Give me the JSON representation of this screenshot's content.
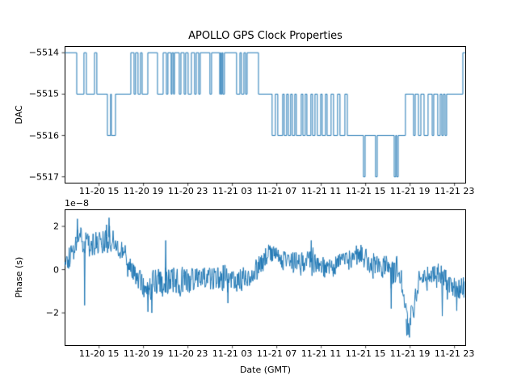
{
  "figure": {
    "title": "APOLLO GPS Clock Properties",
    "background": "#ffffff",
    "line_color": "#1f77b4",
    "axis_color": "#000000"
  },
  "chart_data": [
    {
      "type": "line",
      "name": "dac-vs-time",
      "style": "step",
      "ylabel": "DAC",
      "x_unit": "hours since 11-20 00:00 (GMT)",
      "xlim": [
        11.9,
        47.97
      ],
      "ylim": [
        -5517.15,
        -5513.85
      ],
      "grid": false,
      "xtick_values": [
        15,
        19,
        23,
        27,
        31,
        35,
        39,
        43,
        47
      ],
      "xtick_labels": [
        "11-20 15",
        "11-20 19",
        "11-20 23",
        "11-21 03",
        "11-21 07",
        "11-21 11",
        "11-21 15",
        "11-21 19",
        "11-21 23"
      ],
      "ytick_values": [
        -5514,
        -5515,
        -5516,
        -5517
      ],
      "ytick_labels": [
        "−5514",
        "−5515",
        "−5516",
        "−5517"
      ],
      "step_points": [
        [
          11.9,
          -5514
        ],
        [
          12.99,
          -5515
        ],
        [
          13.64,
          -5514
        ],
        [
          13.86,
          -5515
        ],
        [
          14.59,
          -5514
        ],
        [
          14.8,
          -5515
        ],
        [
          15.75,
          -5516
        ],
        [
          16.04,
          -5515
        ],
        [
          16.11,
          -5516
        ],
        [
          16.48,
          -5515
        ],
        [
          17.86,
          -5514
        ],
        [
          18.15,
          -5515
        ],
        [
          18.29,
          -5514
        ],
        [
          18.51,
          -5515
        ],
        [
          18.73,
          -5514
        ],
        [
          18.88,
          -5515
        ],
        [
          19.39,
          -5514
        ],
        [
          20.26,
          -5515
        ],
        [
          20.77,
          -5514
        ],
        [
          21.06,
          -5515
        ],
        [
          21.2,
          -5514
        ],
        [
          21.49,
          -5515
        ],
        [
          21.57,
          -5514
        ],
        [
          21.71,
          -5515
        ],
        [
          21.79,
          -5514
        ],
        [
          22.22,
          -5515
        ],
        [
          22.37,
          -5514
        ],
        [
          22.66,
          -5515
        ],
        [
          22.8,
          -5514
        ],
        [
          23.02,
          -5515
        ],
        [
          23.31,
          -5514
        ],
        [
          23.6,
          -5515
        ],
        [
          23.75,
          -5514
        ],
        [
          23.97,
          -5515
        ],
        [
          24.11,
          -5514
        ],
        [
          24.98,
          -5515
        ],
        [
          25.13,
          -5514
        ],
        [
          25.86,
          -5515
        ],
        [
          25.93,
          -5514
        ],
        [
          26.0,
          -5515
        ],
        [
          26.08,
          -5514
        ],
        [
          26.15,
          -5515
        ],
        [
          26.29,
          -5514
        ],
        [
          27.38,
          -5515
        ],
        [
          27.68,
          -5514
        ],
        [
          27.82,
          -5515
        ],
        [
          28.04,
          -5514
        ],
        [
          28.19,
          -5515
        ],
        [
          28.33,
          -5514
        ],
        [
          29.35,
          -5515
        ],
        [
          30.58,
          -5516
        ],
        [
          30.87,
          -5515
        ],
        [
          31.09,
          -5516
        ],
        [
          31.53,
          -5515
        ],
        [
          31.67,
          -5516
        ],
        [
          31.89,
          -5515
        ],
        [
          32.04,
          -5516
        ],
        [
          32.25,
          -5515
        ],
        [
          32.4,
          -5516
        ],
        [
          32.62,
          -5515
        ],
        [
          32.76,
          -5516
        ],
        [
          33.2,
          -5515
        ],
        [
          33.35,
          -5516
        ],
        [
          33.56,
          -5515
        ],
        [
          33.71,
          -5516
        ],
        [
          34.07,
          -5515
        ],
        [
          34.22,
          -5516
        ],
        [
          34.44,
          -5515
        ],
        [
          34.65,
          -5516
        ],
        [
          34.95,
          -5515
        ],
        [
          35.09,
          -5516
        ],
        [
          35.38,
          -5515
        ],
        [
          35.53,
          -5516
        ],
        [
          35.89,
          -5515
        ],
        [
          36.11,
          -5516
        ],
        [
          36.47,
          -5515
        ],
        [
          36.69,
          -5516
        ],
        [
          37.13,
          -5515
        ],
        [
          37.35,
          -5516
        ],
        [
          38.8,
          -5517
        ],
        [
          38.95,
          -5516
        ],
        [
          39.89,
          -5517
        ],
        [
          40.04,
          -5516
        ],
        [
          41.57,
          -5517
        ],
        [
          41.71,
          -5516
        ],
        [
          41.79,
          -5517
        ],
        [
          41.93,
          -5516
        ],
        [
          42.58,
          -5515
        ],
        [
          43.31,
          -5516
        ],
        [
          43.46,
          -5515
        ],
        [
          43.75,
          -5516
        ],
        [
          43.97,
          -5515
        ],
        [
          44.26,
          -5516
        ],
        [
          44.62,
          -5515
        ],
        [
          44.99,
          -5516
        ],
        [
          45.13,
          -5515
        ],
        [
          45.49,
          -5516
        ],
        [
          45.71,
          -5515
        ],
        [
          45.86,
          -5516
        ],
        [
          46.0,
          -5515
        ],
        [
          46.15,
          -5516
        ],
        [
          46.29,
          -5515
        ],
        [
          47.75,
          -5514
        ],
        [
          47.97,
          -5514
        ]
      ]
    },
    {
      "type": "line",
      "name": "phase-vs-time",
      "style": "noisy",
      "ylabel": "Phase (s)",
      "xlabel": "Date (GMT)",
      "offset_text": "1e−8",
      "y_unit": "1e-8 s",
      "x_unit": "hours since 11-20 00:00 (GMT)",
      "xlim": [
        11.9,
        47.97
      ],
      "ylim": [
        -3.5,
        2.78
      ],
      "grid": false,
      "xtick_values": [
        15,
        19,
        23,
        27,
        31,
        35,
        39,
        43,
        47
      ],
      "xtick_labels": [
        "11-20 15",
        "11-20 19",
        "11-20 23",
        "11-21 03",
        "11-21 07",
        "11-21 11",
        "11-21 15",
        "11-21 19",
        "11-21 23"
      ],
      "ytick_values": [
        2,
        0,
        -2
      ],
      "ytick_labels": [
        "2",
        "0",
        "−2"
      ],
      "series": {
        "t_start": 11.9,
        "t_step": 0.3636,
        "mid": [
          0.3,
          0.5,
          0.8,
          1.4,
          1.6,
          1.3,
          1.2,
          1.1,
          1.2,
          1.3,
          1.35,
          1.5,
          1.3,
          1.1,
          0.9,
          0.7,
          0.35,
          -0.1,
          -0.45,
          -0.6,
          -0.7,
          -0.75,
          -0.6,
          -0.55,
          -0.5,
          -0.5,
          -0.55,
          -0.5,
          -0.5,
          -0.45,
          -0.45,
          -0.5,
          -0.45,
          -0.4,
          -0.45,
          -0.4,
          -0.35,
          -0.4,
          -0.35,
          -0.4,
          -0.45,
          -0.4,
          -0.4,
          -0.35,
          -0.4,
          -0.35,
          -0.25,
          -0.1,
          0.1,
          0.3,
          0.55,
          0.75,
          0.6,
          0.5,
          0.45,
          0.4,
          0.35,
          0.3,
          0.25,
          0.3,
          0.3,
          0.35,
          0.25,
          0.15,
          0.1,
          0.05,
          0.0,
          0.1,
          0.25,
          0.3,
          0.4,
          0.5,
          0.65,
          0.75,
          0.6,
          0.45,
          0.3,
          0.2,
          0.15,
          0.1,
          0.15,
          0.1,
          0.0,
          -0.4,
          -1.5,
          -2.6,
          -2.0,
          -1.0,
          -0.6,
          -0.5,
          -0.4,
          -0.3,
          -0.3,
          -0.45,
          -0.5,
          -0.55,
          -0.6,
          -0.75,
          -0.85,
          -0.55
        ],
        "amp": [
          0.45,
          0.5,
          0.55,
          0.7,
          0.7,
          0.8,
          0.6,
          0.6,
          0.55,
          0.6,
          0.6,
          0.8,
          0.6,
          0.5,
          0.5,
          0.45,
          0.5,
          0.5,
          0.5,
          0.55,
          0.8,
          0.9,
          0.7,
          0.6,
          0.7,
          0.8,
          0.6,
          0.6,
          0.65,
          0.6,
          0.55,
          0.6,
          0.55,
          0.5,
          0.55,
          0.5,
          0.55,
          0.6,
          0.55,
          0.6,
          0.7,
          0.55,
          0.5,
          0.55,
          0.6,
          0.5,
          0.5,
          0.5,
          0.5,
          0.5,
          0.5,
          0.5,
          0.5,
          0.5,
          0.5,
          0.5,
          0.5,
          0.55,
          0.6,
          0.5,
          0.55,
          0.7,
          0.5,
          0.5,
          0.5,
          0.5,
          0.5,
          0.5,
          0.5,
          0.5,
          0.5,
          0.5,
          0.5,
          0.5,
          0.5,
          0.5,
          0.55,
          0.5,
          0.5,
          0.55,
          0.6,
          0.7,
          0.6,
          0.6,
          0.7,
          0.45,
          0.5,
          0.6,
          0.6,
          0.55,
          0.55,
          0.5,
          0.6,
          0.8,
          0.6,
          0.55,
          0.6,
          0.65,
          0.6,
          0.5
        ],
        "spikes": [
          [
            13.05,
            2.35
          ],
          [
            13.7,
            -1.65
          ],
          [
            15.9,
            2.4
          ],
          [
            19.4,
            -1.95
          ],
          [
            19.75,
            -2.0
          ],
          [
            21.0,
            1.35
          ],
          [
            26.6,
            -1.55
          ],
          [
            34.1,
            1.35
          ],
          [
            41.3,
            -1.8
          ],
          [
            42.7,
            -3.05
          ],
          [
            45.9,
            -2.15
          ],
          [
            47.2,
            -1.9
          ]
        ]
      }
    }
  ]
}
